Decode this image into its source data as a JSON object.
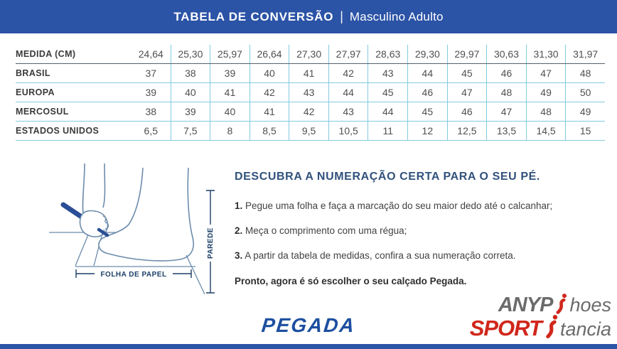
{
  "header": {
    "title_bold": "TABELA DE CONVERSÃO",
    "divider": "|",
    "subtitle": "Masculino Adulto"
  },
  "table": {
    "rows": [
      {
        "label": "MEDIDA (CM)",
        "values": [
          "24,64",
          "25,30",
          "25,97",
          "26,64",
          "27,30",
          "27,97",
          "28,63",
          "29,30",
          "29,97",
          "30,63",
          "31,30",
          "31,97"
        ]
      },
      {
        "label": "BRASIL",
        "values": [
          "37",
          "38",
          "39",
          "40",
          "41",
          "42",
          "43",
          "44",
          "45",
          "46",
          "47",
          "48"
        ]
      },
      {
        "label": "EUROPA",
        "values": [
          "39",
          "40",
          "41",
          "42",
          "43",
          "44",
          "45",
          "46",
          "47",
          "48",
          "49",
          "50"
        ]
      },
      {
        "label": "MERCOSUL",
        "values": [
          "38",
          "39",
          "40",
          "41",
          "42",
          "43",
          "44",
          "45",
          "46",
          "47",
          "48",
          "49"
        ]
      },
      {
        "label": "ESTADOS UNIDOS",
        "values": [
          "6,5",
          "7,5",
          "8",
          "8,5",
          "9,5",
          "10,5",
          "11",
          "12",
          "12,5",
          "13,5",
          "14,5",
          "15"
        ]
      }
    ]
  },
  "guide": {
    "title": "DESCUBRA A NUMERAÇÃO CERTA PARA O SEU PÉ.",
    "steps": [
      {
        "num": "1.",
        "text": " Pegue uma folha e faça a marcação do seu maior dedo até o calcanhar;"
      },
      {
        "num": "2.",
        "text": " Meça o comprimento com uma régua;"
      },
      {
        "num": "3.",
        "text": " A partir da tabela de medidas, confira a sua numeração correta."
      }
    ],
    "closing": "Pronto, agora é só escolher o seu calçado Pegada."
  },
  "illustration": {
    "wall_label": "PAREDE",
    "paper_label": "FOLHA DE PAPEL"
  },
  "brand": {
    "logo": "PEGADA"
  },
  "watermark": {
    "line1_bold": "ANYP",
    "line1_rest": "hoes",
    "line2_bold": "SPORT",
    "line2_rest": "tancia"
  },
  "colors": {
    "header_blue": "#2b53a6",
    "table_line_cyan": "#82cbdf",
    "table_line_dark": "#55606c",
    "guide_title_blue": "#31517c",
    "logo_blue": "#1d4fa0",
    "watermark_red": "#d0271c",
    "watermark_gray": "#6b6b6b"
  }
}
